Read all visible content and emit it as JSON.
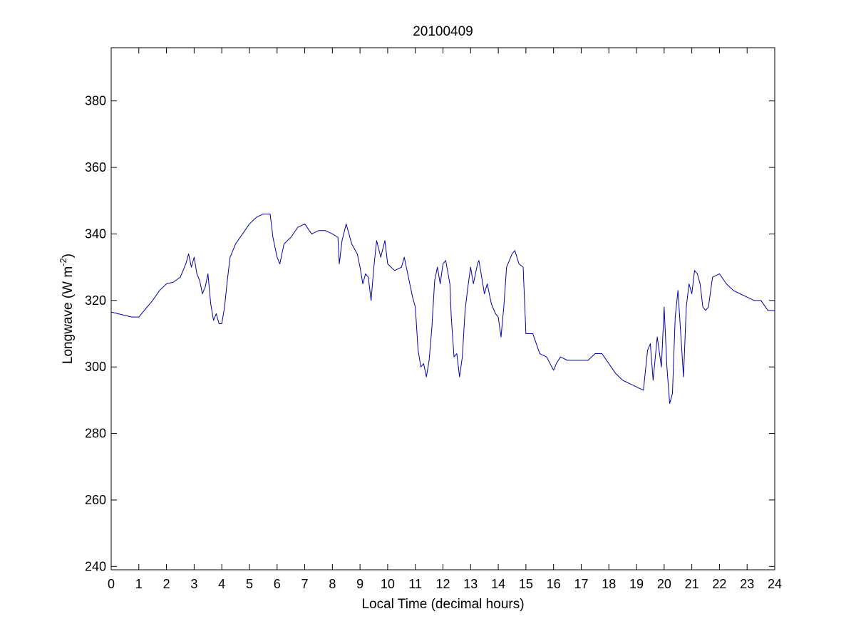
{
  "chart_data": {
    "type": "line",
    "title": "20100409",
    "xlabel": "Local Time (decimal hours)",
    "ylabel": {
      "prefix": "Longwave (W m",
      "superscript": "-2",
      "suffix": ")"
    },
    "xlim": [
      0,
      24
    ],
    "ylim": [
      239,
      396
    ],
    "xticks": [
      0,
      1,
      2,
      3,
      4,
      5,
      6,
      7,
      8,
      9,
      10,
      11,
      12,
      13,
      14,
      15,
      16,
      17,
      18,
      19,
      20,
      21,
      22,
      23,
      24
    ],
    "yticks": [
      240,
      260,
      280,
      300,
      320,
      340,
      360,
      380
    ],
    "grid": false,
    "legend": "none",
    "series": [
      {
        "color": "#0000aa",
        "points": [
          [
            0.0,
            316.5
          ],
          [
            0.25,
            316.0
          ],
          [
            0.5,
            315.5
          ],
          [
            0.75,
            315.0
          ],
          [
            1.0,
            315.0
          ],
          [
            1.25,
            317.5
          ],
          [
            1.5,
            320.0
          ],
          [
            1.75,
            323.0
          ],
          [
            2.0,
            325.0
          ],
          [
            2.25,
            325.5
          ],
          [
            2.5,
            327.0
          ],
          [
            2.7,
            331.0
          ],
          [
            2.8,
            334.0
          ],
          [
            2.9,
            330.0
          ],
          [
            3.0,
            333.0
          ],
          [
            3.1,
            328.0
          ],
          [
            3.2,
            326.0
          ],
          [
            3.3,
            322.0
          ],
          [
            3.4,
            324.0
          ],
          [
            3.5,
            328.0
          ],
          [
            3.6,
            319.0
          ],
          [
            3.7,
            314.0
          ],
          [
            3.8,
            316.0
          ],
          [
            3.9,
            313.0
          ],
          [
            4.0,
            313.0
          ],
          [
            4.1,
            318.0
          ],
          [
            4.2,
            326.0
          ],
          [
            4.3,
            333.0
          ],
          [
            4.5,
            337.0
          ],
          [
            4.75,
            340.0
          ],
          [
            5.0,
            343.0
          ],
          [
            5.25,
            345.0
          ],
          [
            5.5,
            346.0
          ],
          [
            5.75,
            346.0
          ],
          [
            5.85,
            339.0
          ],
          [
            6.0,
            333.0
          ],
          [
            6.1,
            331.0
          ],
          [
            6.25,
            337.0
          ],
          [
            6.5,
            339.0
          ],
          [
            6.75,
            342.0
          ],
          [
            7.0,
            343.0
          ],
          [
            7.25,
            340.0
          ],
          [
            7.5,
            341.0
          ],
          [
            7.75,
            341.0
          ],
          [
            8.0,
            340.0
          ],
          [
            8.2,
            339.0
          ],
          [
            8.25,
            331.0
          ],
          [
            8.35,
            338.0
          ],
          [
            8.5,
            343.0
          ],
          [
            8.7,
            337.0
          ],
          [
            8.9,
            334.0
          ],
          [
            9.0,
            330.0
          ],
          [
            9.1,
            325.0
          ],
          [
            9.2,
            328.0
          ],
          [
            9.3,
            327.0
          ],
          [
            9.4,
            320.0
          ],
          [
            9.5,
            330.0
          ],
          [
            9.6,
            338.0
          ],
          [
            9.75,
            333.0
          ],
          [
            9.9,
            338.0
          ],
          [
            10.0,
            331.0
          ],
          [
            10.25,
            329.0
          ],
          [
            10.5,
            330.0
          ],
          [
            10.6,
            333.0
          ],
          [
            10.8,
            325.0
          ],
          [
            10.9,
            321.0
          ],
          [
            11.0,
            318.0
          ],
          [
            11.1,
            305.0
          ],
          [
            11.2,
            300.0
          ],
          [
            11.3,
            301.0
          ],
          [
            11.4,
            297.0
          ],
          [
            11.5,
            302.0
          ],
          [
            11.6,
            312.0
          ],
          [
            11.7,
            326.0
          ],
          [
            11.8,
            330.0
          ],
          [
            11.9,
            325.0
          ],
          [
            12.0,
            331.0
          ],
          [
            12.1,
            332.0
          ],
          [
            12.25,
            325.0
          ],
          [
            12.3,
            315.0
          ],
          [
            12.4,
            303.0
          ],
          [
            12.5,
            304.0
          ],
          [
            12.6,
            297.0
          ],
          [
            12.7,
            303.0
          ],
          [
            12.8,
            317.0
          ],
          [
            12.9,
            324.0
          ],
          [
            13.0,
            330.0
          ],
          [
            13.1,
            325.0
          ],
          [
            13.25,
            331.0
          ],
          [
            13.3,
            332.0
          ],
          [
            13.5,
            322.0
          ],
          [
            13.6,
            325.0
          ],
          [
            13.75,
            319.0
          ],
          [
            13.9,
            316.0
          ],
          [
            14.0,
            315.0
          ],
          [
            14.1,
            309.0
          ],
          [
            14.2,
            318.0
          ],
          [
            14.3,
            330.0
          ],
          [
            14.5,
            334.0
          ],
          [
            14.6,
            335.0
          ],
          [
            14.75,
            331.0
          ],
          [
            14.9,
            330.0
          ],
          [
            15.0,
            310.0
          ],
          [
            15.25,
            310.0
          ],
          [
            15.5,
            304.0
          ],
          [
            15.75,
            303.0
          ],
          [
            16.0,
            299.0
          ],
          [
            16.1,
            301.0
          ],
          [
            16.25,
            303.0
          ],
          [
            16.5,
            302.0
          ],
          [
            16.75,
            302.0
          ],
          [
            17.0,
            302.0
          ],
          [
            17.25,
            302.0
          ],
          [
            17.5,
            304.0
          ],
          [
            17.75,
            304.0
          ],
          [
            18.0,
            301.0
          ],
          [
            18.25,
            298.0
          ],
          [
            18.5,
            296.0
          ],
          [
            18.75,
            295.0
          ],
          [
            19.0,
            294.0
          ],
          [
            19.25,
            293.0
          ],
          [
            19.4,
            305.0
          ],
          [
            19.5,
            307.0
          ],
          [
            19.6,
            296.0
          ],
          [
            19.75,
            309.0
          ],
          [
            19.9,
            300.0
          ],
          [
            20.0,
            318.0
          ],
          [
            20.1,
            300.0
          ],
          [
            20.2,
            289.0
          ],
          [
            20.3,
            292.0
          ],
          [
            20.4,
            315.0
          ],
          [
            20.5,
            323.0
          ],
          [
            20.6,
            310.0
          ],
          [
            20.7,
            297.0
          ],
          [
            20.8,
            318.0
          ],
          [
            20.9,
            325.0
          ],
          [
            21.0,
            322.0
          ],
          [
            21.1,
            329.0
          ],
          [
            21.2,
            328.0
          ],
          [
            21.3,
            325.0
          ],
          [
            21.4,
            318.0
          ],
          [
            21.5,
            317.0
          ],
          [
            21.6,
            318.0
          ],
          [
            21.75,
            327.0
          ],
          [
            22.0,
            328.0
          ],
          [
            22.25,
            325.0
          ],
          [
            22.5,
            323.0
          ],
          [
            22.75,
            322.0
          ],
          [
            23.0,
            321.0
          ],
          [
            23.25,
            320.0
          ],
          [
            23.5,
            320.0
          ],
          [
            23.75,
            317.0
          ],
          [
            24.0,
            317.0
          ]
        ]
      }
    ]
  }
}
